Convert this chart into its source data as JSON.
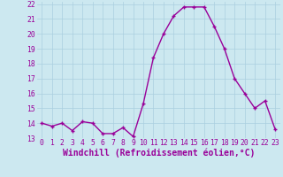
{
  "x": [
    0,
    1,
    2,
    3,
    4,
    5,
    6,
    7,
    8,
    9,
    10,
    11,
    12,
    13,
    14,
    15,
    16,
    17,
    18,
    19,
    20,
    21,
    22,
    23
  ],
  "y": [
    14.0,
    13.8,
    14.0,
    13.5,
    14.1,
    14.0,
    13.3,
    13.3,
    13.7,
    13.1,
    15.3,
    18.4,
    20.0,
    21.2,
    21.8,
    21.8,
    21.8,
    20.5,
    19.0,
    17.0,
    16.0,
    15.0,
    15.5,
    13.6
  ],
  "line_color": "#990099",
  "marker": "+",
  "marker_size": 3.5,
  "marker_linewidth": 1.0,
  "background_color": "#cce8f0",
  "grid_color": "#aacfdf",
  "xlabel": "Windchill (Refroidissement éolien,°C)",
  "xlabel_color": "#990099",
  "tick_color": "#990099",
  "ylim": [
    13,
    22
  ],
  "xlim_min": -0.5,
  "xlim_max": 23.5,
  "yticks": [
    13,
    14,
    15,
    16,
    17,
    18,
    19,
    20,
    21,
    22
  ],
  "xticks": [
    0,
    1,
    2,
    3,
    4,
    5,
    6,
    7,
    8,
    9,
    10,
    11,
    12,
    13,
    14,
    15,
    16,
    17,
    18,
    19,
    20,
    21,
    22,
    23
  ],
  "tick_fontsize": 5.8,
  "xlabel_fontsize": 7.0,
  "line_width": 1.0
}
